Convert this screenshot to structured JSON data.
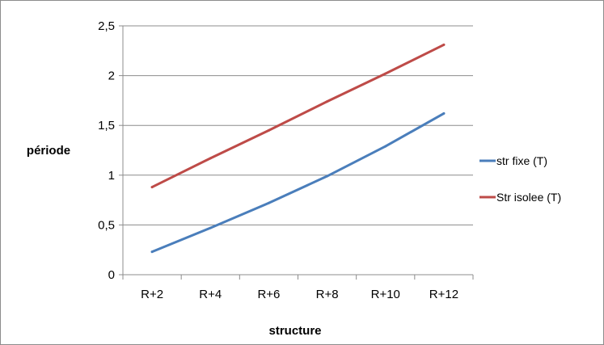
{
  "chart_data": {
    "type": "line",
    "title": "",
    "xlabel": "structure",
    "ylabel": "période",
    "categories": [
      "R+2",
      "R+4",
      "R+6",
      "R+8",
      "R+10",
      "R+12"
    ],
    "ylim": [
      0,
      2.5
    ],
    "yticks": [
      "0",
      "0,5",
      "1",
      "1,5",
      "2",
      "2,5"
    ],
    "grid": true,
    "legend_position": "right",
    "series": [
      {
        "name": "str fixe (T)",
        "color": "#4a7ebb",
        "values": [
          0.23,
          0.47,
          0.72,
          0.99,
          1.29,
          1.62
        ]
      },
      {
        "name": "Str isolee (T)",
        "color": "#be4b48",
        "values": [
          0.88,
          1.17,
          1.45,
          1.74,
          2.02,
          2.31
        ]
      }
    ]
  }
}
